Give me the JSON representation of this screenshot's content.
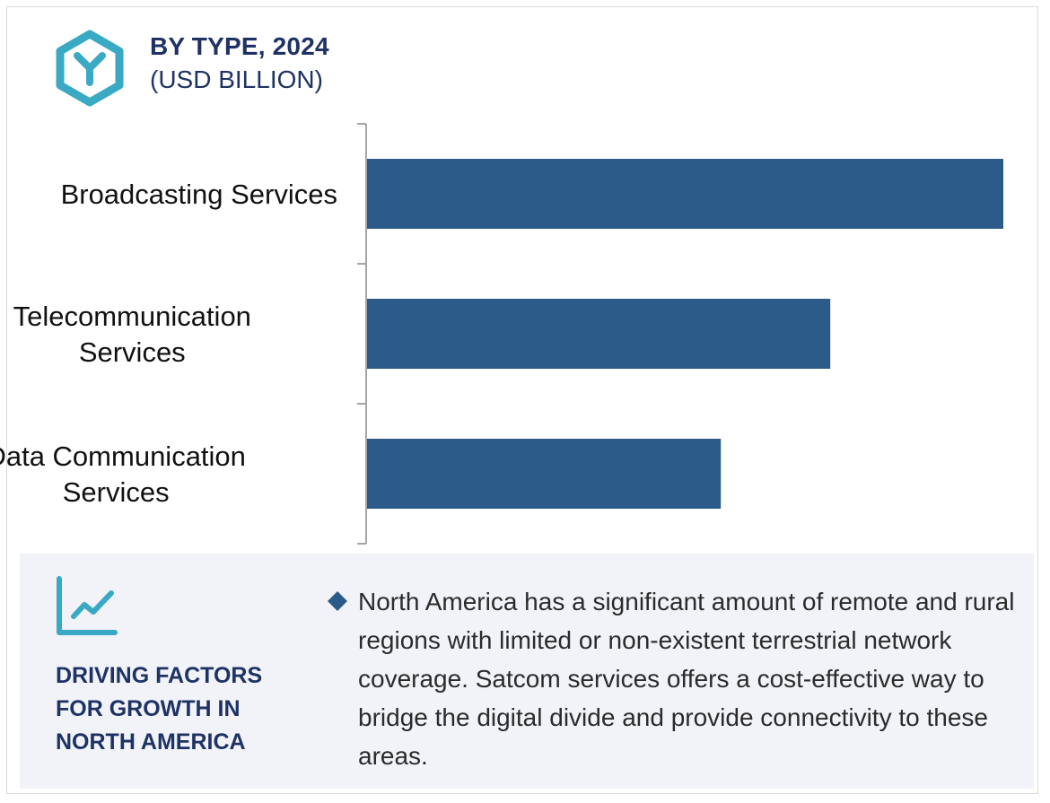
{
  "header": {
    "title": "BY TYPE, 2024",
    "subtitle": "(USD BILLION)",
    "icon": "cube-y-icon"
  },
  "colors": {
    "bar": "#2c5b8a",
    "accent": "#3aa9c4",
    "title": "#1e3264",
    "panel_bg": "#f1f3f8",
    "bullet": "#2c5b8a"
  },
  "chart_data": {
    "type": "bar",
    "orientation": "horizontal",
    "title": "BY TYPE, 2024",
    "subtitle": "(USD BILLION)",
    "categories": [
      [
        "Broadcasting Services"
      ],
      [
        "Telecommunication",
        "Services"
      ],
      [
        "Data Communication",
        "Services"
      ]
    ],
    "values": [
      100,
      72.8,
      55.6
    ],
    "xlim": [
      0,
      100
    ],
    "grid": false,
    "legend": "none",
    "value_labels": false
  },
  "factors": {
    "icon": "trend-chart-icon",
    "bullet_icon": "diamond-bullet-icon",
    "title": "DRIVING FACTORS FOR GROWTH IN NORTH AMERICA",
    "text": "North America has a significant amount of remote and rural regions with limited or non-existent terrestrial network coverage. Satcom services offers a cost-effective way to bridge the digital divide and provide connectivity to these areas."
  }
}
